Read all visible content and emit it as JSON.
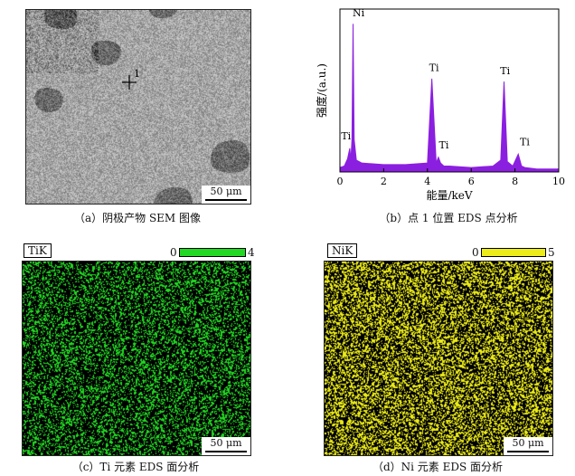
{
  "panels": {
    "a": {
      "caption": "（a）阴极产物 SEM 图像",
      "scale": "50 μm",
      "point_marker": "1"
    },
    "b": {
      "caption": "（b）点 1 位置 EDS 点分析"
    },
    "c": {
      "caption": "（c）Ti 元素 EDS 面分析",
      "label": "TiK",
      "cb_min": "0",
      "cb_max": "4",
      "color": "#22d822",
      "scale": "50 μm"
    },
    "d": {
      "caption": "（d）Ni 元素 EDS 面分析",
      "label": "NiK",
      "cb_min": "0",
      "cb_max": "5",
      "color": "#ecec18",
      "scale": "50 μm"
    }
  },
  "chart_data": {
    "type": "line",
    "xlabel": "能量/keV",
    "ylabel": "强度/(a.u.)",
    "xlim": [
      0,
      10
    ],
    "xticks": [
      "0",
      "2",
      "4",
      "6",
      "8",
      "10"
    ],
    "line_color": "#8b1fe0",
    "series": [
      {
        "x": [
          0,
          0.2,
          0.35,
          0.45,
          0.5,
          0.55,
          0.6,
          0.65,
          0.75,
          1.0,
          2.0,
          3.0,
          4.0,
          4.2,
          4.4,
          4.5,
          4.6,
          4.75,
          5.0,
          6.0,
          7.0,
          7.35,
          7.5,
          7.65,
          7.9,
          8.15,
          8.3,
          8.45,
          9.0,
          10.0
        ],
        "y": [
          3,
          4,
          9,
          16,
          8,
          22,
          100,
          22,
          8,
          6,
          5,
          5,
          6,
          63,
          6,
          10,
          6,
          4,
          4,
          3,
          4,
          8,
          61,
          7,
          4,
          12,
          4,
          3,
          2,
          2
        ]
      }
    ],
    "annotations": [
      {
        "text": "Ni",
        "x": 0.85,
        "y": 105
      },
      {
        "text": "Ti",
        "x": 0.28,
        "y": 22
      },
      {
        "text": "Ti",
        "x": 4.3,
        "y": 68
      },
      {
        "text": "Ti",
        "x": 4.75,
        "y": 16
      },
      {
        "text": "Ti",
        "x": 7.55,
        "y": 66
      },
      {
        "text": "Ti",
        "x": 8.45,
        "y": 18
      }
    ]
  }
}
